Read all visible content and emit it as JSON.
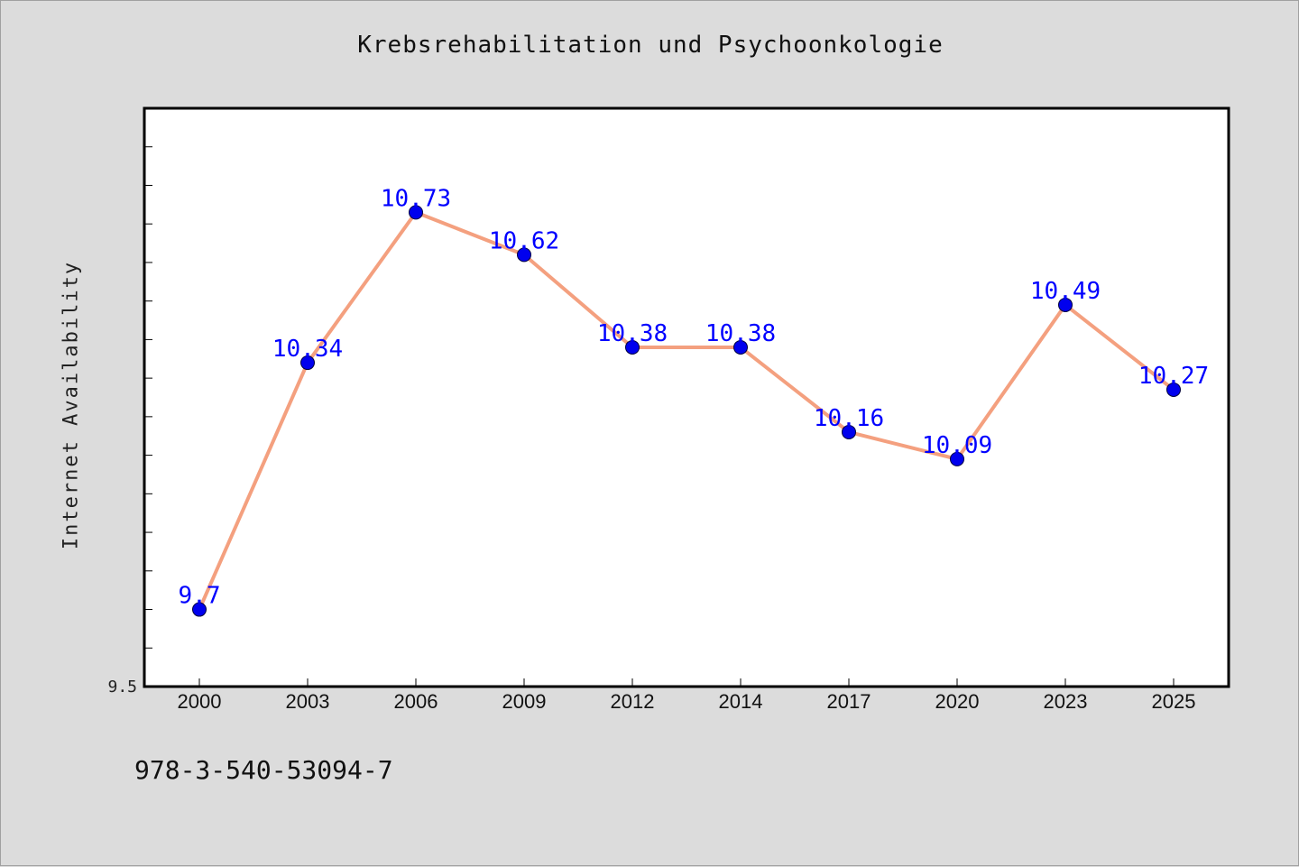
{
  "chart_data": {
    "type": "line",
    "title": "Krebsrehabilitation und Psychoonkologie",
    "xlabel": "",
    "ylabel": "Internet Availability",
    "categories": [
      "2000",
      "2003",
      "2006",
      "2009",
      "2012",
      "2014",
      "2017",
      "2020",
      "2023",
      "2025"
    ],
    "series": [
      {
        "values": [
          9.7,
          10.34,
          10.73,
          10.62,
          10.38,
          10.38,
          10.16,
          10.09,
          10.49,
          10.27
        ]
      }
    ],
    "data_labels": [
      "9.7",
      "10.34",
      "10.73",
      "10.62",
      "10.38",
      "10.38",
      "10.16",
      "10.09",
      "10.49",
      "10.27"
    ],
    "ylim": [
      9.5,
      11.0
    ],
    "ytick_labels": [
      {
        "value": 9.5,
        "label": "9.5"
      }
    ],
    "yminor_step": 0.1,
    "grid": false,
    "colors": {
      "line": "#f4a07f",
      "marker": "#0000ee",
      "label": "#0000ff",
      "plot_bg": "#ffffff",
      "page_bg": "#dcdcdc"
    }
  },
  "footer": {
    "id_text": "978-3-540-53094-7"
  }
}
